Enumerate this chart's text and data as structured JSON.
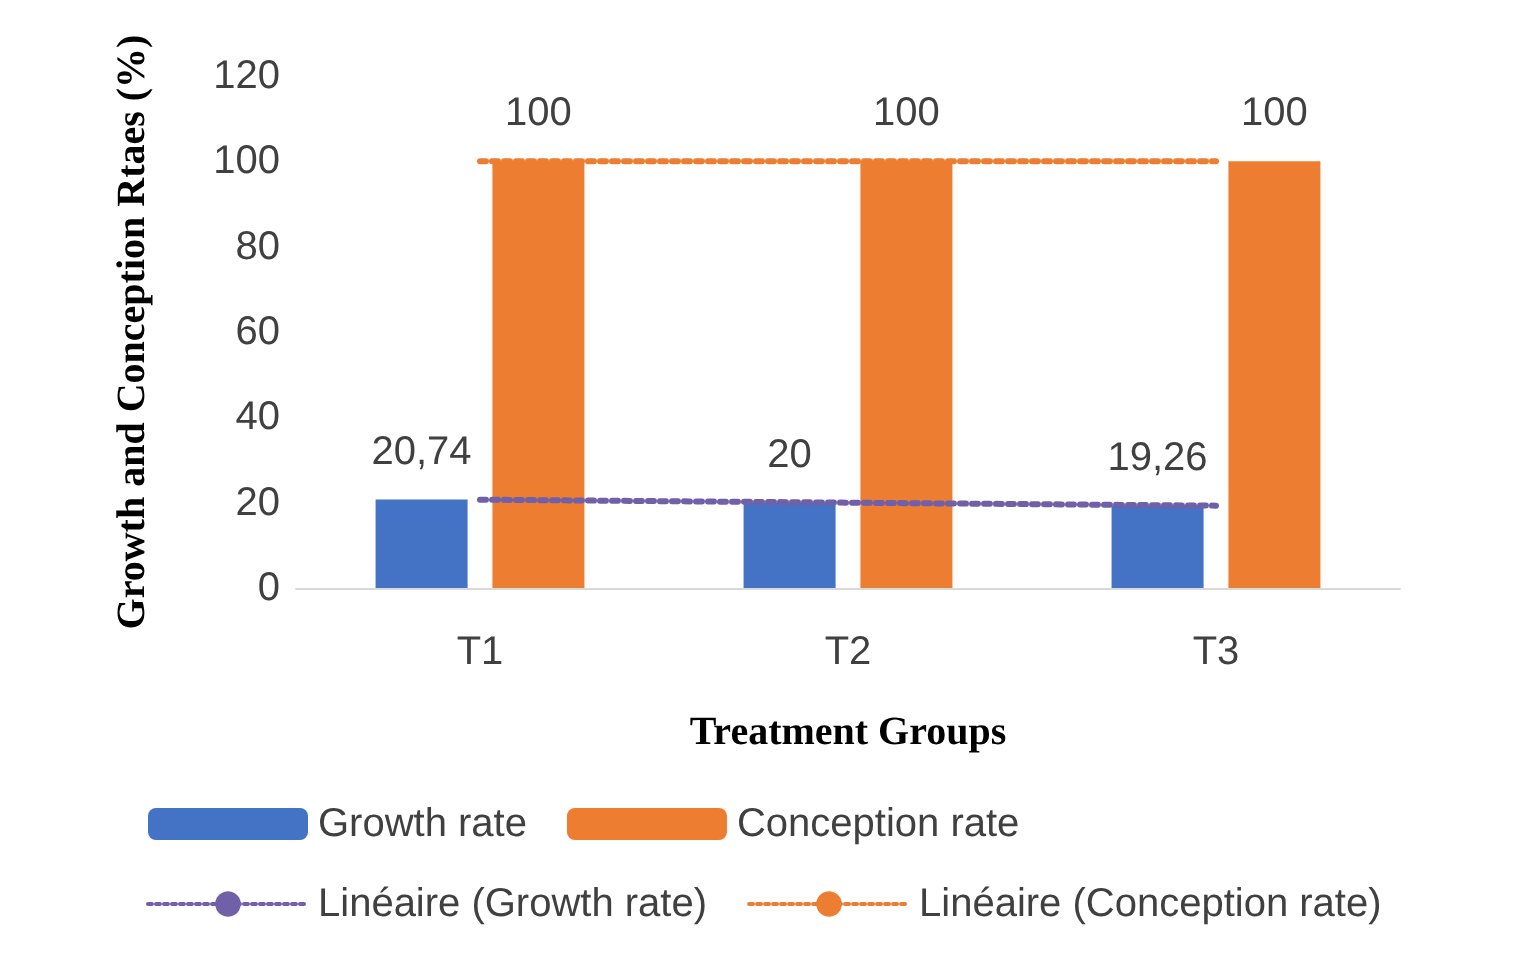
{
  "chart_data": {
    "type": "bar",
    "ylabel": "Growth and Conception Rtaes (%)",
    "xlabel": "Treatment Groups",
    "categories": [
      "T1",
      "T2",
      "T3"
    ],
    "series": [
      {
        "name": "Growth rate",
        "color": "#4472c4",
        "values": [
          20.74,
          20,
          19.26
        ],
        "value_labels": [
          "20,74",
          "20",
          "19,26"
        ]
      },
      {
        "name": "Conception rate",
        "color": "#ed7d31",
        "values": [
          100,
          100,
          100
        ],
        "value_labels": [
          "100",
          "100",
          "100"
        ]
      },
      {
        "name": "Linéaire (Growth rate)",
        "type": "line",
        "color": "#7060a8",
        "x": [
          "T1",
          "T2",
          "T3"
        ],
        "values": [
          20.7,
          20,
          19.3
        ],
        "line_style": "dotted",
        "marker": "none"
      },
      {
        "name": "Linéaire (Conception rate)",
        "type": "line",
        "color": "#ed7d31",
        "x": [
          "T1",
          "T2",
          "T3"
        ],
        "values": [
          100,
          100,
          100
        ],
        "line_style": "dotted",
        "marker": "none"
      }
    ],
    "ylim": [
      0,
      120
    ],
    "yticks": [
      0,
      20,
      40,
      60,
      80,
      100,
      120
    ],
    "grid": false,
    "legend": "bottom"
  }
}
